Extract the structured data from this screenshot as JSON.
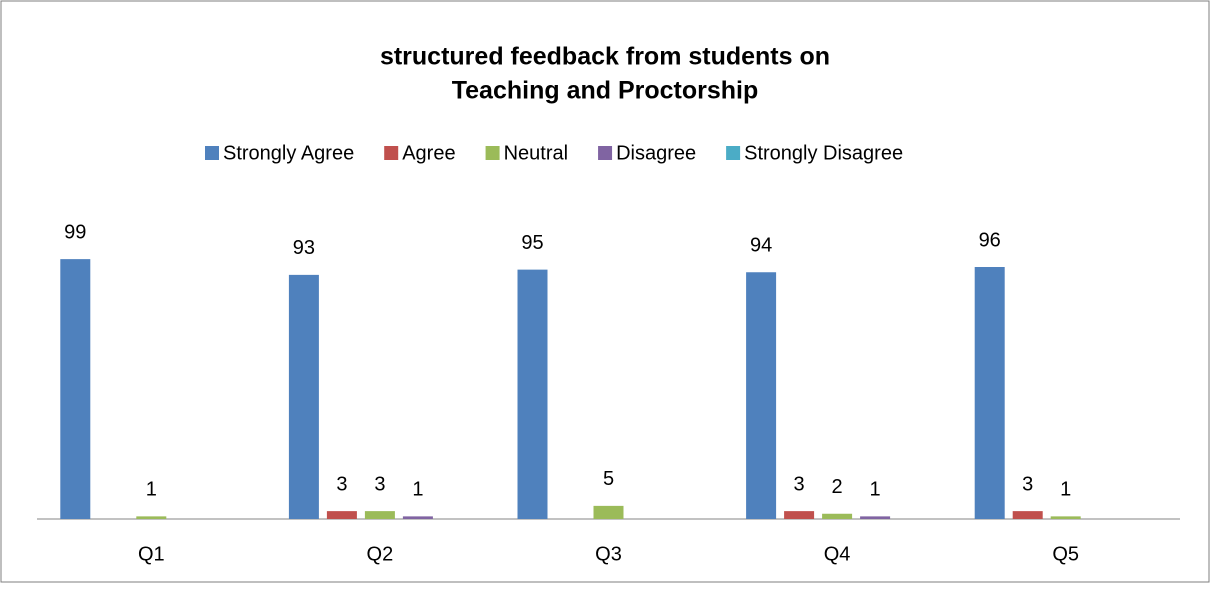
{
  "chart_data": {
    "type": "bar",
    "title": [
      "structured feedback from students on",
      "Teaching and Proctorship"
    ],
    "categories": [
      "Q1",
      "Q2",
      "Q3",
      "Q4",
      "Q5"
    ],
    "series": [
      {
        "name": "Strongly Agree",
        "color": "#4f81bd",
        "values": [
          99,
          93,
          95,
          94,
          96
        ]
      },
      {
        "name": "Agree",
        "color": "#c0504d",
        "values": [
          null,
          3,
          null,
          3,
          3
        ]
      },
      {
        "name": "Neutral",
        "color": "#9bbb59",
        "values": [
          1,
          3,
          5,
          2,
          1
        ]
      },
      {
        "name": "Disagree",
        "color": "#8064a2",
        "values": [
          null,
          1,
          null,
          1,
          null
        ]
      },
      {
        "name": "Strongly Disagree",
        "color": "#4bacc6",
        "values": [
          null,
          null,
          null,
          null,
          null
        ]
      }
    ],
    "ylim": [
      0,
      120
    ],
    "legend": "top",
    "grid": false
  }
}
